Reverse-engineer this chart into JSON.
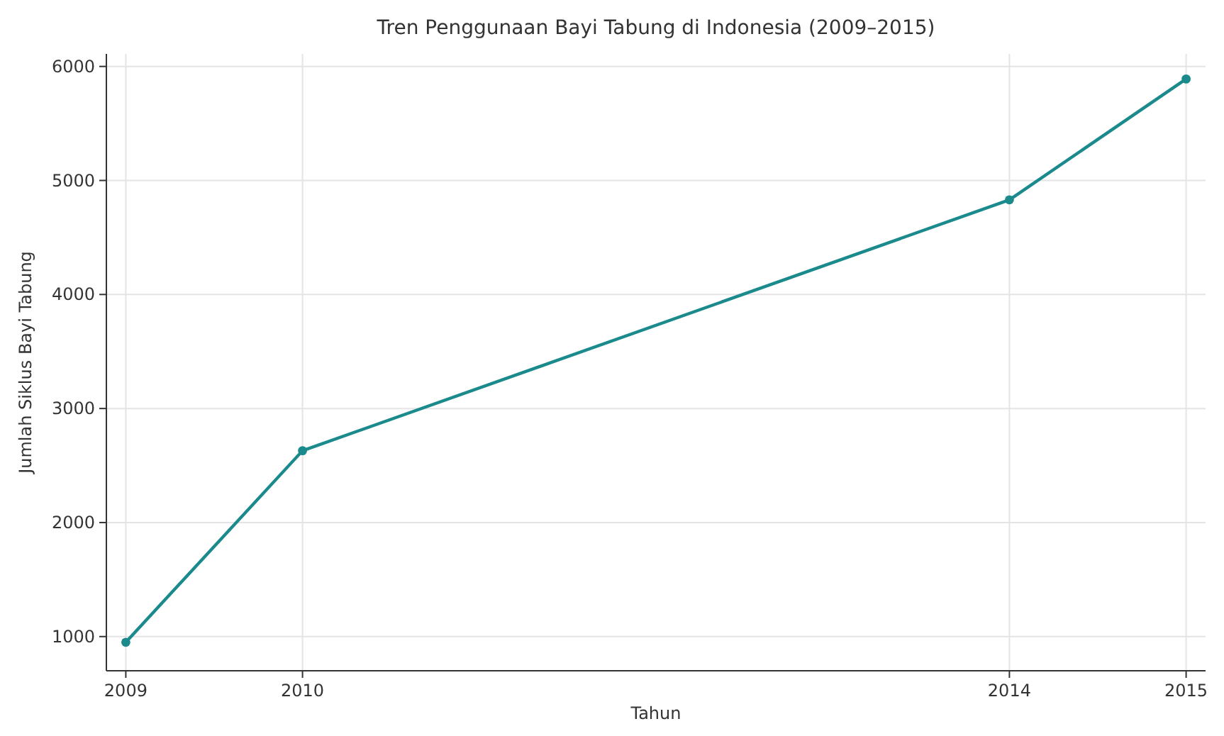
{
  "chart_data": {
    "type": "line",
    "title": "Tren Penggunaan Bayi Tabung di Indonesia (2009–2015)",
    "xlabel": "Tahun",
    "ylabel": "Jumlah Siklus Bayi Tabung",
    "x": [
      2009,
      2010,
      2014,
      2015
    ],
    "series": [
      {
        "color": "#1b8a8c",
        "values": [
          950,
          2630,
          4830,
          5890
        ]
      }
    ],
    "xlim": [
      2008.89,
      2015.11
    ],
    "xticks": [
      2009,
      2010,
      2014,
      2015
    ],
    "ylim": [
      700,
      6110
    ],
    "yticks": [
      1000,
      2000,
      3000,
      4000,
      5000,
      6000
    ],
    "grid": true,
    "marker": "circle",
    "line_style": "solid"
  }
}
